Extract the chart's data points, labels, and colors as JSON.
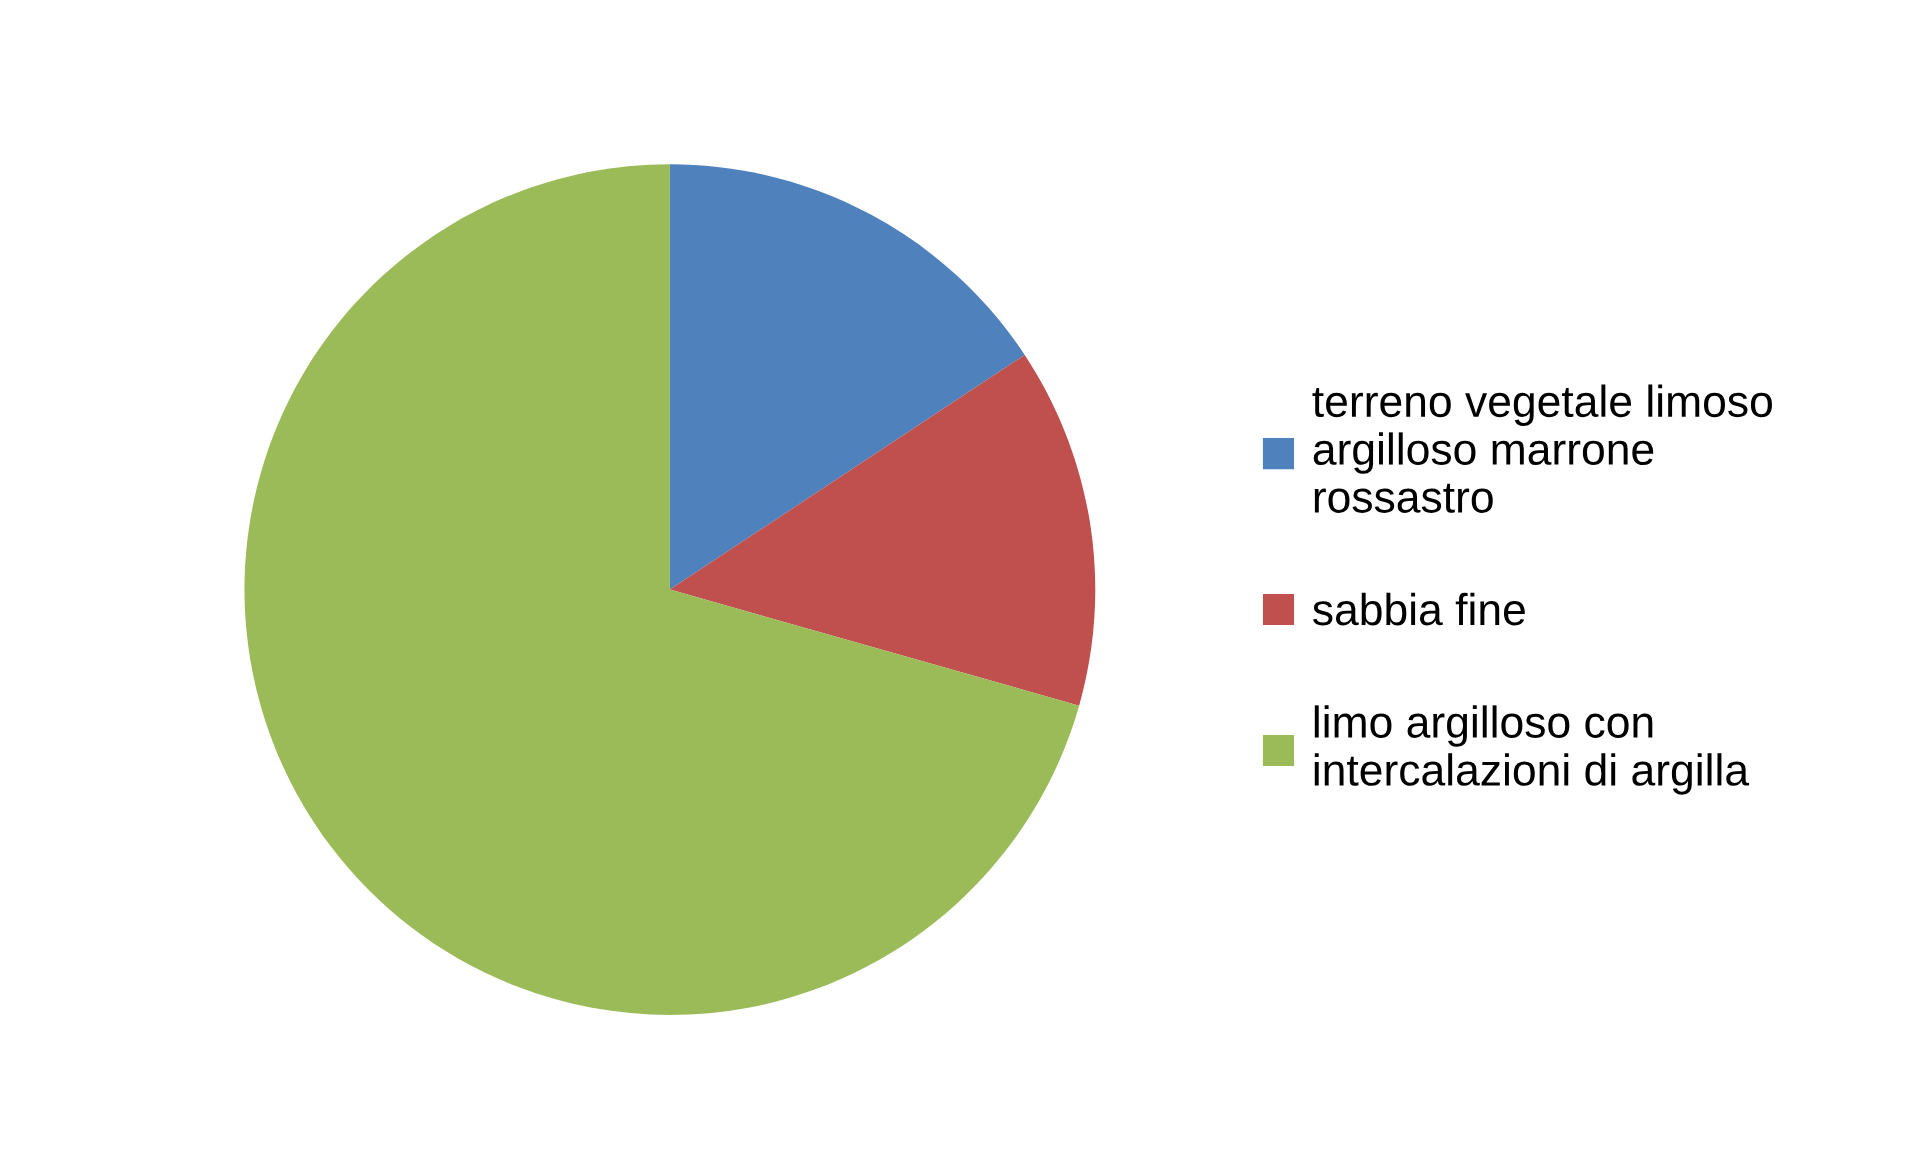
{
  "chart_data": {
    "type": "pie",
    "categories": [
      "terreno vegetale limoso\nargilloso marrone\nrossastro",
      "sabbia fine",
      "limo argilloso con\nintercalazioni di argilla"
    ],
    "values": [
      15.7,
      13.7,
      70.6
    ],
    "colors": [
      "#4f81bd",
      "#c0504d",
      "#9bbb59"
    ],
    "legend": "right"
  }
}
